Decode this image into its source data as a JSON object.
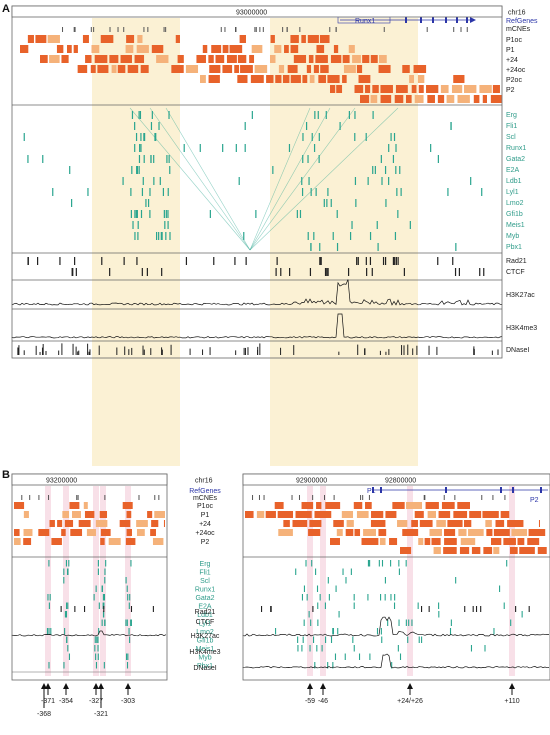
{
  "panels": [
    {
      "letter": "A"
    },
    {
      "letter": "B"
    }
  ],
  "panelA": {
    "chrom": "chr16",
    "coord": "93000000",
    "gene": "Runx1",
    "tracks": [
      "RefGenes",
      "mCNEs",
      "P1oc",
      "P1",
      "+24",
      "+24oc",
      "P2oc",
      "P2"
    ],
    "tfs": [
      "Erg",
      "Fli1",
      "Scl",
      "Runx1",
      "Gata2",
      "E2A",
      "Ldb1",
      "Lyl1",
      "Lmo2",
      "Gfi1b",
      "Meis1",
      "Myb",
      "Pbx1"
    ],
    "bottom": [
      "Rad21",
      "CTCF",
      "H3K27ac",
      "H3K4me3",
      "DNaseI"
    ]
  },
  "panelB": {
    "chrom": "chr16",
    "coordLeft": "93200000",
    "coordMid": "92900000",
    "coordRight": "92800000",
    "p1": "P1",
    "p2": "P2",
    "tracks": [
      "RefGenes",
      "mCNEs",
      "P1oc",
      "P1",
      "+24",
      "+24oc",
      "P2"
    ],
    "tfs": [
      "Erg",
      "Fli1",
      "Scl",
      "Runx1",
      "Gata2",
      "E2A",
      "Ldb1",
      "Lyl1",
      "Lmo2",
      "Gfi1b",
      "Meis1",
      "Myb",
      "Pbx1"
    ],
    "bottom": [
      "Rad21",
      "CTCF",
      "H3K27ac",
      "H3K4me3",
      "DNaseI"
    ],
    "arrowsLeftTop": [
      "-371",
      "-354",
      "-327",
      "-303"
    ],
    "arrowsLeftBottom": [
      "-368",
      "-321"
    ],
    "arrowsRightTop": [
      "-59",
      "-46",
      "+24/+26",
      "+110"
    ]
  },
  "colors": {
    "orange": "#e8622a",
    "lightOrange": "#f5b27a",
    "teal": "#2aa58f",
    "tealText": "#2f9c8a",
    "blue": "#2c36a8",
    "highlight": "#fbf1d4",
    "pink": "#f3c6d6"
  }
}
